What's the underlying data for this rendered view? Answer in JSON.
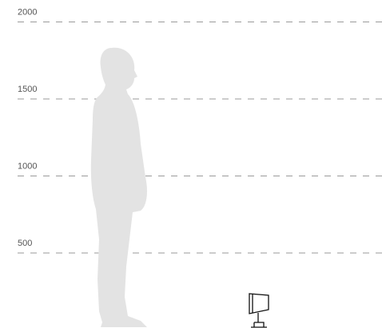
{
  "scale": {
    "ticks": [
      2000,
      1500,
      1000,
      500
    ]
  }
}
